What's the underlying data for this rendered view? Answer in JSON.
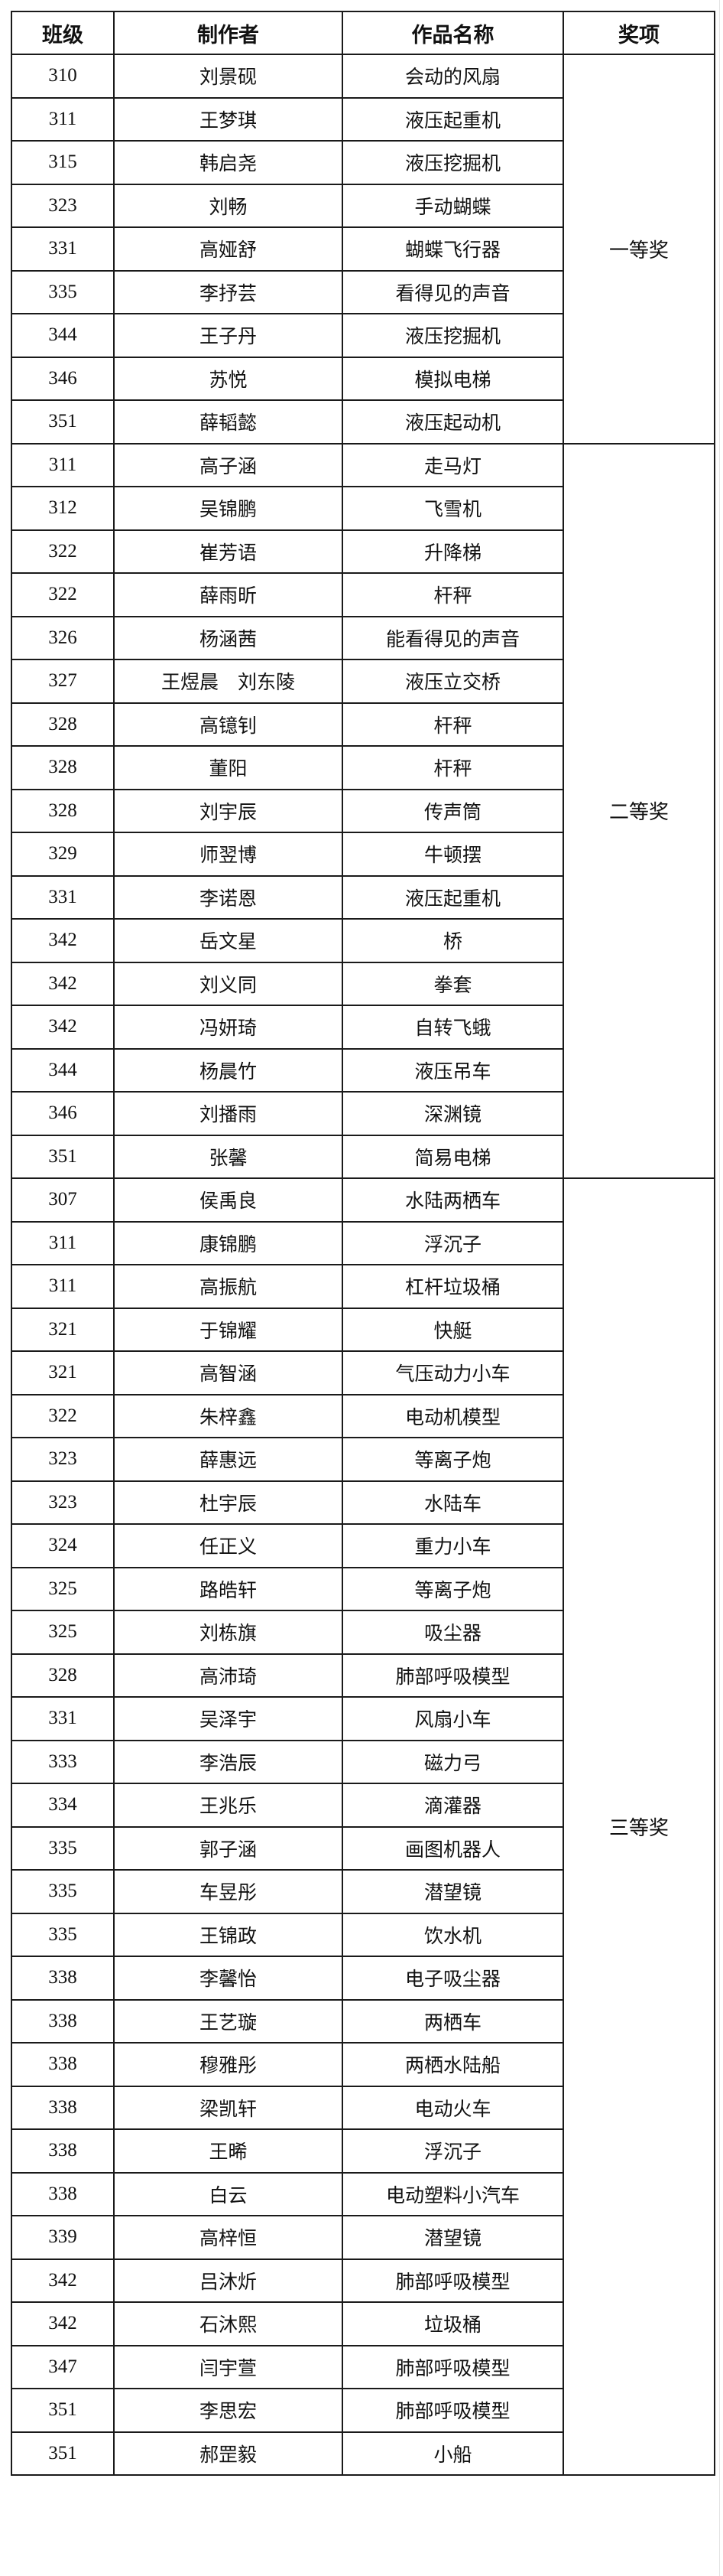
{
  "headers": [
    "班级",
    "制作者",
    "作品名称",
    "奖项"
  ],
  "groups": [
    {
      "award": "一等奖",
      "rows": [
        [
          "310",
          "刘景砚",
          "会动的风扇"
        ],
        [
          "311",
          "王梦琪",
          "液压起重机"
        ],
        [
          "315",
          "韩启尧",
          "液压挖掘机"
        ],
        [
          "323",
          "刘畅",
          "手动蝴蝶"
        ],
        [
          "331",
          "高娅舒",
          "蝴蝶飞行器"
        ],
        [
          "335",
          "李抒芸",
          "看得见的声音"
        ],
        [
          "344",
          "王子丹",
          "液压挖掘机"
        ],
        [
          "346",
          "苏悦",
          "模拟电梯"
        ],
        [
          "351",
          "薛韬懿",
          "液压起动机"
        ]
      ]
    },
    {
      "award": "二等奖",
      "rows": [
        [
          "311",
          "高子涵",
          "走马灯"
        ],
        [
          "312",
          "吴锦鹏",
          "飞雪机"
        ],
        [
          "322",
          "崔芳语",
          "升降梯"
        ],
        [
          "322",
          "薛雨昕",
          "杆秤"
        ],
        [
          "326",
          "杨涵茜",
          "能看得见的声音"
        ],
        [
          "327",
          "王煜晨　刘东陵",
          "液压立交桥"
        ],
        [
          "328",
          "高镱钊",
          "杆秤"
        ],
        [
          "328",
          "董阳",
          "杆秤"
        ],
        [
          "328",
          "刘宇辰",
          "传声筒"
        ],
        [
          "329",
          "师翌博",
          "牛顿摆"
        ],
        [
          "331",
          "李诺恩",
          "液压起重机"
        ],
        [
          "342",
          "岳文星",
          "桥"
        ],
        [
          "342",
          "刘义同",
          "拳套"
        ],
        [
          "342",
          "冯妍琦",
          "自转飞蛾"
        ],
        [
          "344",
          "杨晨竹",
          "液压吊车"
        ],
        [
          "346",
          "刘播雨",
          "深渊镜"
        ],
        [
          "351",
          "张馨",
          "简易电梯"
        ]
      ]
    },
    {
      "award": "三等奖",
      "rows": [
        [
          "307",
          "侯禹良",
          "水陆两栖车"
        ],
        [
          "311",
          "康锦鹏",
          "浮沉子"
        ],
        [
          "311",
          "高振航",
          "杠杆垃圾桶"
        ],
        [
          "321",
          "于锦耀",
          "快艇"
        ],
        [
          "321",
          "高智涵",
          "气压动力小车"
        ],
        [
          "322",
          "朱梓鑫",
          "电动机模型"
        ],
        [
          "323",
          "薛惠远",
          "等离子炮"
        ],
        [
          "323",
          "杜宇辰",
          "水陆车"
        ],
        [
          "324",
          "任正义",
          "重力小车"
        ],
        [
          "325",
          "路皓轩",
          "等离子炮"
        ],
        [
          "325",
          "刘栋旗",
          "吸尘器"
        ],
        [
          "328",
          "高沛琦",
          "肺部呼吸模型"
        ],
        [
          "331",
          "吴泽宇",
          "风扇小车"
        ],
        [
          "333",
          "李浩辰",
          "磁力弓"
        ],
        [
          "334",
          "王兆乐",
          "滴灌器"
        ],
        [
          "335",
          "郭子涵",
          "画图机器人"
        ],
        [
          "335",
          "车昱彤",
          "潜望镜"
        ],
        [
          "335",
          "王锦政",
          "饮水机"
        ],
        [
          "338",
          "李馨怡",
          "电子吸尘器"
        ],
        [
          "338",
          "王艺璇",
          "两栖车"
        ],
        [
          "338",
          "穆雅彤",
          "两栖水陆船"
        ],
        [
          "338",
          "梁凯轩",
          "电动火车"
        ],
        [
          "338",
          "王晞",
          "浮沉子"
        ],
        [
          "338",
          "白云",
          "电动塑料小汽车"
        ],
        [
          "339",
          "高梓恒",
          "潜望镜"
        ],
        [
          "342",
          "吕沐炘",
          "肺部呼吸模型"
        ],
        [
          "342",
          "石沐熙",
          "垃圾桶"
        ],
        [
          "347",
          "闫宇萱",
          "肺部呼吸模型"
        ],
        [
          "351",
          "李思宏",
          "肺部呼吸模型"
        ],
        [
          "351",
          "郝罡毅",
          "小船"
        ]
      ]
    }
  ]
}
